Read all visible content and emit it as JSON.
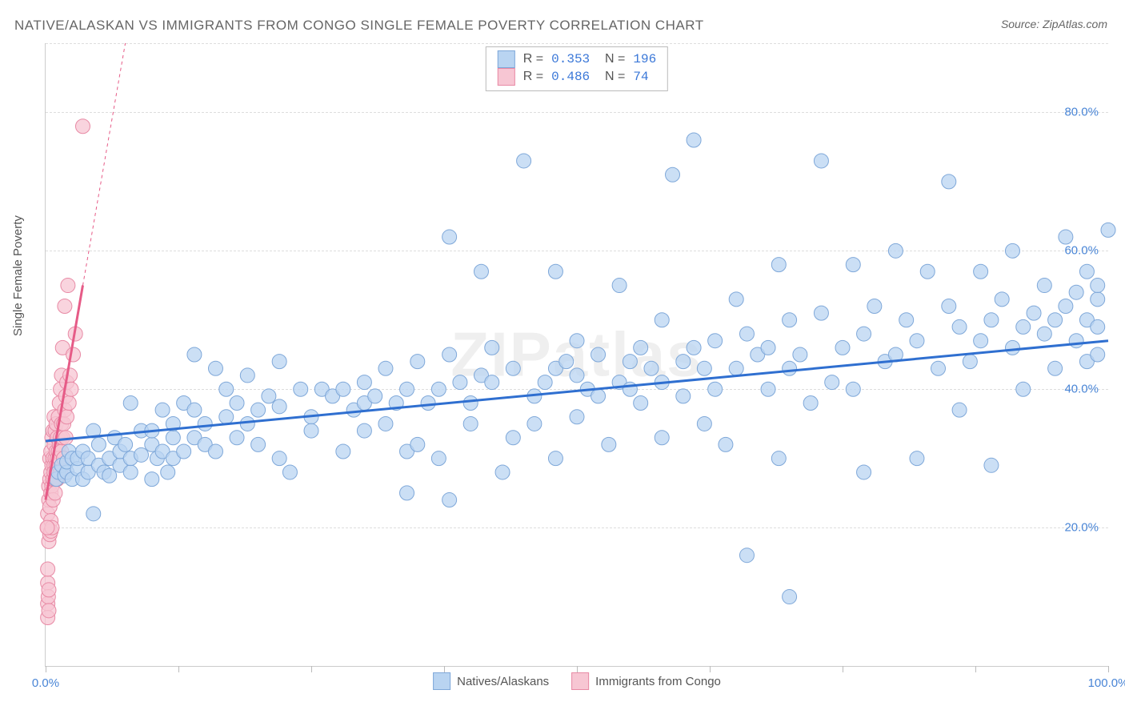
{
  "title": "NATIVE/ALASKAN VS IMMIGRANTS FROM CONGO SINGLE FEMALE POVERTY CORRELATION CHART",
  "source_label": "Source: ZipAtlas.com",
  "ylabel": "Single Female Poverty",
  "watermark": "ZIPatlas",
  "chart": {
    "type": "scatter",
    "xlim": [
      0,
      100
    ],
    "ylim": [
      0,
      90
    ],
    "x_ticks": [
      0,
      100
    ],
    "x_tick_labels": [
      "0.0%",
      "100.0%"
    ],
    "x_minor_ticks": [
      12.5,
      25,
      37.5,
      50,
      62.5,
      75,
      87.5
    ],
    "y_gridlines": [
      20,
      40,
      60,
      80
    ],
    "y_tick_labels": [
      "20.0%",
      "40.0%",
      "60.0%",
      "80.0%"
    ],
    "grid_color": "#dddddd",
    "background_color": "#ffffff",
    "series": [
      {
        "name": "Natives/Alaskans",
        "color_fill": "#b9d4f1",
        "color_stroke": "#7fa8d9",
        "marker_radius": 9,
        "fill_opacity": 0.75,
        "trend": {
          "x1": 0,
          "y1": 32.5,
          "x2": 100,
          "y2": 47,
          "color": "#2f6fd0",
          "width": 3
        },
        "R": "0.353",
        "N": "196",
        "points": [
          [
            1,
            27
          ],
          [
            1.2,
            28
          ],
          [
            1.5,
            29
          ],
          [
            1.8,
            27.5
          ],
          [
            2,
            28
          ],
          [
            2,
            29.5
          ],
          [
            2.2,
            31
          ],
          [
            2.5,
            27
          ],
          [
            2.5,
            30
          ],
          [
            3,
            28.5
          ],
          [
            3,
            30
          ],
          [
            3.5,
            27
          ],
          [
            3.5,
            31
          ],
          [
            4,
            28
          ],
          [
            4,
            30
          ],
          [
            4.5,
            22
          ],
          [
            4.5,
            34
          ],
          [
            5,
            29
          ],
          [
            5,
            32
          ],
          [
            5.5,
            28
          ],
          [
            6,
            27.5
          ],
          [
            6,
            30
          ],
          [
            6.5,
            33
          ],
          [
            7,
            29
          ],
          [
            7,
            31
          ],
          [
            7.5,
            32
          ],
          [
            8,
            28
          ],
          [
            8,
            30
          ],
          [
            8,
            38
          ],
          [
            9,
            30.5
          ],
          [
            9,
            34
          ],
          [
            10,
            27
          ],
          [
            10,
            32
          ],
          [
            10,
            34
          ],
          [
            10.5,
            30
          ],
          [
            11,
            31
          ],
          [
            11,
            37
          ],
          [
            11.5,
            28
          ],
          [
            12,
            33
          ],
          [
            12,
            30
          ],
          [
            12,
            35
          ],
          [
            13,
            31
          ],
          [
            13,
            38
          ],
          [
            14,
            33
          ],
          [
            14,
            37
          ],
          [
            14,
            45
          ],
          [
            15,
            32
          ],
          [
            15,
            35
          ],
          [
            16,
            43
          ],
          [
            16,
            31
          ],
          [
            17,
            36
          ],
          [
            17,
            40
          ],
          [
            18,
            33
          ],
          [
            18,
            38
          ],
          [
            19,
            35
          ],
          [
            19,
            42
          ],
          [
            20,
            37
          ],
          [
            20,
            32
          ],
          [
            21,
            39
          ],
          [
            22,
            37.5
          ],
          [
            22,
            30
          ],
          [
            22,
            44
          ],
          [
            23,
            28
          ],
          [
            24,
            40
          ],
          [
            25,
            36
          ],
          [
            25,
            34
          ],
          [
            26,
            40
          ],
          [
            27,
            39
          ],
          [
            28,
            40
          ],
          [
            28,
            31
          ],
          [
            29,
            37
          ],
          [
            30,
            38
          ],
          [
            30,
            41
          ],
          [
            30,
            34
          ],
          [
            31,
            39
          ],
          [
            32,
            43
          ],
          [
            32,
            35
          ],
          [
            33,
            38
          ],
          [
            34,
            31
          ],
          [
            34,
            40
          ],
          [
            34,
            25
          ],
          [
            35,
            44
          ],
          [
            35,
            32
          ],
          [
            36,
            38
          ],
          [
            37,
            30
          ],
          [
            37,
            40
          ],
          [
            38,
            24
          ],
          [
            38,
            45
          ],
          [
            38,
            62
          ],
          [
            39,
            41
          ],
          [
            40,
            38
          ],
          [
            40,
            35
          ],
          [
            41,
            42
          ],
          [
            41,
            57
          ],
          [
            42,
            41
          ],
          [
            42,
            46
          ],
          [
            43,
            28
          ],
          [
            44,
            43
          ],
          [
            44,
            33
          ],
          [
            45,
            73
          ],
          [
            46,
            39
          ],
          [
            46,
            35
          ],
          [
            47,
            41
          ],
          [
            48,
            43
          ],
          [
            48,
            30
          ],
          [
            48,
            57
          ],
          [
            49,
            44
          ],
          [
            50,
            42
          ],
          [
            50,
            36
          ],
          [
            50,
            47
          ],
          [
            51,
            40
          ],
          [
            52,
            39
          ],
          [
            52,
            45
          ],
          [
            53,
            32
          ],
          [
            54,
            41
          ],
          [
            54,
            55
          ],
          [
            55,
            40
          ],
          [
            55,
            44
          ],
          [
            56,
            38
          ],
          [
            56,
            46
          ],
          [
            57,
            43
          ],
          [
            58,
            41
          ],
          [
            58,
            33
          ],
          [
            58,
            50
          ],
          [
            59,
            71
          ],
          [
            60,
            44
          ],
          [
            60,
            39
          ],
          [
            61,
            46
          ],
          [
            61,
            76
          ],
          [
            62,
            43
          ],
          [
            62,
            35
          ],
          [
            63,
            40
          ],
          [
            63,
            47
          ],
          [
            64,
            32
          ],
          [
            65,
            43
          ],
          [
            65,
            53
          ],
          [
            66,
            48
          ],
          [
            66,
            16
          ],
          [
            67,
            45
          ],
          [
            68,
            40
          ],
          [
            68,
            46
          ],
          [
            69,
            58
          ],
          [
            69,
            30
          ],
          [
            70,
            43
          ],
          [
            70,
            50
          ],
          [
            70,
            10
          ],
          [
            71,
            45
          ],
          [
            72,
            38
          ],
          [
            73,
            51
          ],
          [
            73,
            73
          ],
          [
            74,
            41
          ],
          [
            75,
            46
          ],
          [
            76,
            40
          ],
          [
            76,
            58
          ],
          [
            77,
            48
          ],
          [
            77,
            28
          ],
          [
            78,
            52
          ],
          [
            79,
            44
          ],
          [
            80,
            45
          ],
          [
            80,
            60
          ],
          [
            81,
            50
          ],
          [
            82,
            47
          ],
          [
            82,
            30
          ],
          [
            83,
            57
          ],
          [
            84,
            43
          ],
          [
            85,
            52
          ],
          [
            85,
            70
          ],
          [
            86,
            49
          ],
          [
            86,
            37
          ],
          [
            87,
            44
          ],
          [
            88,
            57
          ],
          [
            88,
            47
          ],
          [
            89,
            50
          ],
          [
            89,
            29
          ],
          [
            90,
            53
          ],
          [
            91,
            46
          ],
          [
            91,
            60
          ],
          [
            92,
            49
          ],
          [
            92,
            40
          ],
          [
            93,
            51
          ],
          [
            94,
            48
          ],
          [
            94,
            55
          ],
          [
            95,
            50
          ],
          [
            95,
            43
          ],
          [
            96,
            52
          ],
          [
            96,
            62
          ],
          [
            97,
            47
          ],
          [
            97,
            54
          ],
          [
            98,
            50
          ],
          [
            98,
            44
          ],
          [
            98,
            57
          ],
          [
            99,
            49
          ],
          [
            99,
            53
          ],
          [
            99,
            45
          ],
          [
            99,
            55
          ],
          [
            100,
            63
          ]
        ]
      },
      {
        "name": "Immigrants from Congo",
        "color_fill": "#f7c6d3",
        "color_stroke": "#e88aa5",
        "marker_radius": 9,
        "fill_opacity": 0.75,
        "trend": {
          "x1": 0,
          "y1": 24,
          "x2": 3.5,
          "y2": 55,
          "color": "#e65b87",
          "width": 3
        },
        "trend_dashed_ext": {
          "x1": 3.5,
          "y1": 55,
          "x2": 7.5,
          "y2": 90
        },
        "R": "0.486",
        "N": "74",
        "points": [
          [
            0.2,
            20
          ],
          [
            0.2,
            22
          ],
          [
            0.3,
            24
          ],
          [
            0.3,
            18
          ],
          [
            0.3,
            26
          ],
          [
            0.4,
            27
          ],
          [
            0.4,
            23
          ],
          [
            0.4,
            30
          ],
          [
            0.5,
            28
          ],
          [
            0.5,
            25
          ],
          [
            0.5,
            31
          ],
          [
            0.5,
            21
          ],
          [
            0.6,
            29
          ],
          [
            0.6,
            33
          ],
          [
            0.6,
            26
          ],
          [
            0.7,
            30
          ],
          [
            0.7,
            27
          ],
          [
            0.7,
            34
          ],
          [
            0.7,
            24
          ],
          [
            0.8,
            29
          ],
          [
            0.8,
            32
          ],
          [
            0.8,
            28
          ],
          [
            0.8,
            36
          ],
          [
            0.9,
            30
          ],
          [
            0.9,
            27
          ],
          [
            0.9,
            34
          ],
          [
            0.9,
            25
          ],
          [
            1.0,
            31
          ],
          [
            1.0,
            29
          ],
          [
            1.0,
            35
          ],
          [
            1.0,
            28
          ],
          [
            1.1,
            30
          ],
          [
            1.1,
            33
          ],
          [
            1.1,
            27
          ],
          [
            1.2,
            31
          ],
          [
            1.2,
            36
          ],
          [
            1.2,
            29
          ],
          [
            1.3,
            32
          ],
          [
            1.3,
            38
          ],
          [
            1.3,
            30
          ],
          [
            1.4,
            33
          ],
          [
            1.4,
            28
          ],
          [
            1.4,
            40
          ],
          [
            1.5,
            31
          ],
          [
            1.5,
            35
          ],
          [
            1.5,
            42
          ],
          [
            1.6,
            33
          ],
          [
            1.6,
            46
          ],
          [
            1.7,
            35
          ],
          [
            1.7,
            30
          ],
          [
            1.8,
            37
          ],
          [
            1.8,
            52
          ],
          [
            1.9,
            39
          ],
          [
            1.9,
            33
          ],
          [
            2.0,
            41
          ],
          [
            2.0,
            36
          ],
          [
            2.1,
            55
          ],
          [
            2.2,
            38
          ],
          [
            2.3,
            42
          ],
          [
            2.4,
            40
          ],
          [
            2.6,
            45
          ],
          [
            2.8,
            48
          ],
          [
            0.2,
            12
          ],
          [
            0.2,
            9
          ],
          [
            0.2,
            14
          ],
          [
            0.2,
            7
          ],
          [
            0.25,
            10
          ],
          [
            0.3,
            11
          ],
          [
            0.3,
            8
          ],
          [
            0.4,
            19
          ],
          [
            0.5,
            19.5
          ],
          [
            0.6,
            20
          ],
          [
            0.15,
            20
          ],
          [
            3.5,
            78
          ]
        ]
      }
    ]
  },
  "legend_bottom": [
    {
      "label": "Natives/Alaskans"
    },
    {
      "label": "Immigrants from Congo"
    }
  ]
}
